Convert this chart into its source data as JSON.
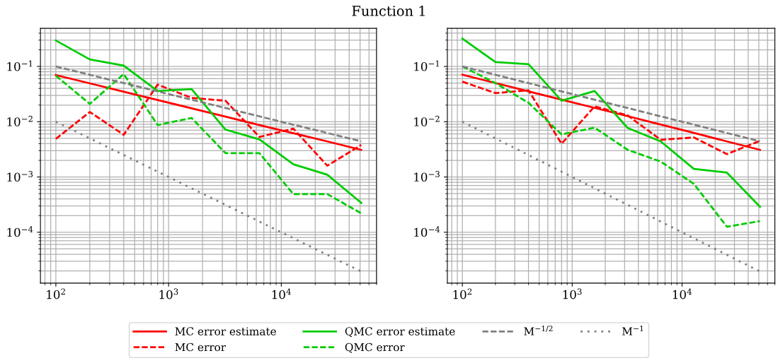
{
  "chart_data": [
    {
      "type": "line",
      "title": "Function 1",
      "x": [
        100,
        200,
        400,
        800,
        1600,
        3200,
        6400,
        12800,
        25600,
        51200
      ],
      "log": "xy",
      "grid": true,
      "legend": "bottom",
      "xlim": [
        73,
        70000
      ],
      "ylim": [
        1.2e-05,
        0.49
      ],
      "xticks": [
        {
          "value": 100,
          "label": "10$^{2}$"
        },
        {
          "value": 1000,
          "label": "10$^{3}$"
        },
        {
          "value": 10000,
          "label": "10$^{4}$"
        }
      ],
      "yticks": [
        {
          "value": 0.0001,
          "label": "10$^{−4}$"
        },
        {
          "value": 0.001,
          "label": "10$^{−3}$"
        },
        {
          "value": 0.01,
          "label": "10$^{−2}$"
        },
        {
          "value": 0.1,
          "label": "10$^{−1}$"
        }
      ],
      "series": [
        {
          "name": "MC error estimate",
          "color": "#ff0000",
          "line_style": "solid",
          "values": [
            0.07,
            0.0495,
            0.035,
            0.0247,
            0.0175,
            0.0124,
            0.0087,
            0.0062,
            0.0044,
            0.0031
          ]
        },
        {
          "name": "MC error",
          "color": "#ff0000",
          "line_style": "dashed",
          "values": [
            0.0049,
            0.015,
            0.0058,
            0.047,
            0.027,
            0.024,
            0.0053,
            0.0075,
            0.0016,
            0.0038
          ]
        },
        {
          "name": "QMC error estimate",
          "color": "#00cc00",
          "line_style": "solid",
          "values": [
            0.295,
            0.134,
            0.104,
            0.036,
            0.039,
            0.0072,
            0.0048,
            0.0017,
            0.0011,
            0.00034
          ]
        },
        {
          "name": "QMC error",
          "color": "#00cc00",
          "line_style": "dashed",
          "values": [
            0.068,
            0.021,
            0.073,
            0.0087,
            0.0117,
            0.0027,
            0.0027,
            0.00049,
            0.00049,
            0.00022
          ]
        },
        {
          "name": "M$^{−1/2}$",
          "color": "#808080",
          "line_style": "dashed",
          "values": [
            0.1,
            0.0707,
            0.05,
            0.0354,
            0.025,
            0.0177,
            0.0125,
            0.00884,
            0.00625,
            0.00442
          ]
        },
        {
          "name": "M$^{−1}$",
          "color": "#808080",
          "line_style": "dotted",
          "values": [
            0.01,
            0.005,
            0.0025,
            0.00125,
            0.000625,
            0.000313,
            0.000156,
            7.8e-05,
            3.9e-05,
            1.95e-05
          ]
        }
      ]
    },
    {
      "type": "line",
      "x": [
        100,
        200,
        400,
        800,
        1600,
        3200,
        6400,
        12800,
        25600,
        51200
      ],
      "log": "xy",
      "grid": true,
      "xlim": [
        73,
        70000
      ],
      "ylim": [
        1.2e-05,
        0.49
      ],
      "xticks": [
        {
          "value": 100,
          "label": "10$^{2}$"
        },
        {
          "value": 1000,
          "label": "10$^{3}$"
        },
        {
          "value": 10000,
          "label": "10$^{4}$"
        }
      ],
      "yticks": [
        {
          "value": 0.0001,
          "label": "10$^{−4}$"
        },
        {
          "value": 0.001,
          "label": "10$^{−3}$"
        },
        {
          "value": 0.01,
          "label": "10$^{−2}$"
        },
        {
          "value": 0.1,
          "label": "10$^{−1}$"
        }
      ],
      "series": [
        {
          "color": "#ff0000",
          "line_style": "solid",
          "values": [
            0.071,
            0.0502,
            0.0355,
            0.0251,
            0.0178,
            0.0126,
            0.0089,
            0.0063,
            0.0044,
            0.0031
          ]
        },
        {
          "color": "#ff0000",
          "line_style": "dashed",
          "values": [
            0.053,
            0.033,
            0.037,
            0.004,
            0.019,
            0.013,
            0.0047,
            0.0052,
            0.0026,
            0.0045
          ]
        },
        {
          "color": "#00cc00",
          "line_style": "solid",
          "values": [
            0.32,
            0.12,
            0.11,
            0.024,
            0.036,
            0.0077,
            0.0044,
            0.0014,
            0.0012,
            0.00029
          ]
        },
        {
          "color": "#00cc00",
          "line_style": "dashed",
          "values": [
            0.1,
            0.05,
            0.022,
            0.0059,
            0.0078,
            0.0031,
            0.0019,
            0.00075,
            0.000126,
            0.000159
          ]
        },
        {
          "color": "#808080",
          "line_style": "dashed",
          "values": [
            0.1,
            0.0707,
            0.05,
            0.0354,
            0.025,
            0.0177,
            0.0125,
            0.00884,
            0.00625,
            0.00442
          ]
        },
        {
          "color": "#808080",
          "line_style": "dotted",
          "values": [
            0.01,
            0.005,
            0.0025,
            0.00125,
            0.000625,
            0.000313,
            0.000156,
            7.8e-05,
            3.9e-05,
            1.95e-05
          ]
        }
      ]
    }
  ]
}
